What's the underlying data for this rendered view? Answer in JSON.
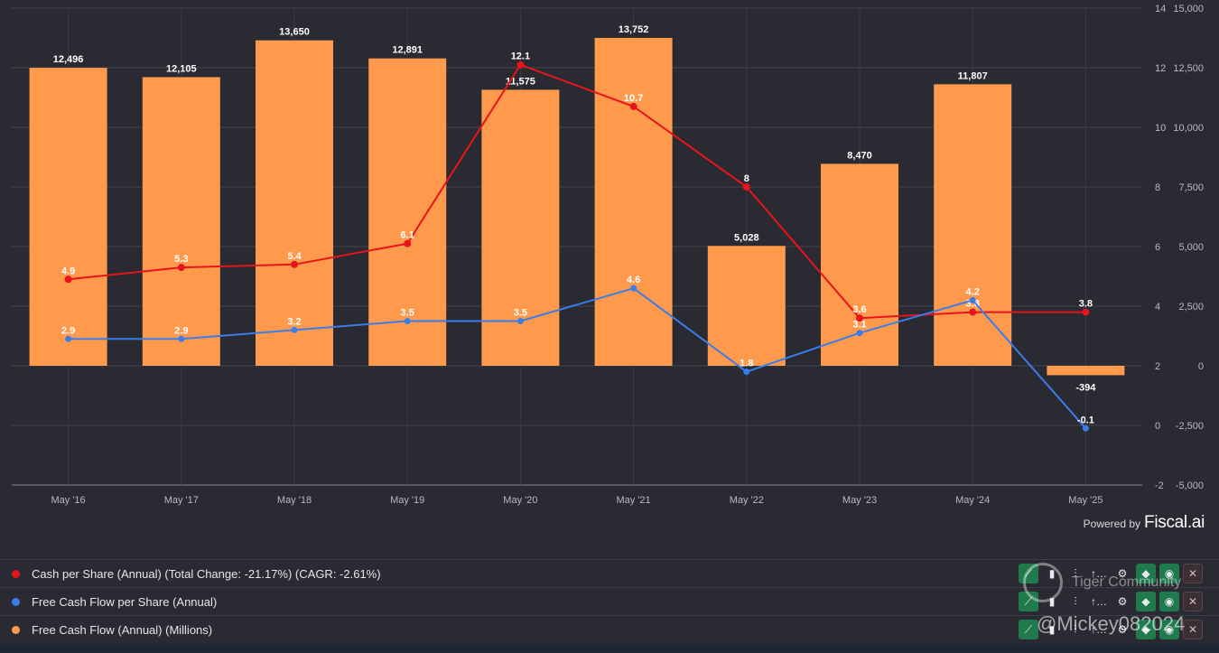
{
  "chart_data": {
    "type": "bar+line",
    "categories": [
      "May '16",
      "May '17",
      "May '18",
      "May '19",
      "May '20",
      "May '21",
      "May '22",
      "May '23",
      "May '24",
      "May '25"
    ],
    "bars": {
      "name": "Free Cash Flow (Annual) (Millions)",
      "values": [
        12496,
        12105,
        13650,
        12891,
        11575,
        13752,
        5028,
        8470,
        11807,
        -394
      ],
      "labels": [
        "12,496",
        "12,105",
        "13,650",
        "12,891",
        "11,575",
        "13,752",
        "5,028",
        "8,470",
        "11,807",
        "-394"
      ],
      "color": "#ff9a4d",
      "axis": "right",
      "ylim": [
        -5000,
        15000
      ],
      "ticks": [
        "15,000",
        "12,500",
        "10,000",
        "7,500",
        "5,000",
        "2,500",
        "0",
        "-2,500",
        "-5,000"
      ]
    },
    "series": [
      {
        "name": "Cash per Share (Annual)",
        "values": [
          4.9,
          5.3,
          5.4,
          6.1,
          12.1,
          10.7,
          8,
          3.6,
          3.8,
          3.8
        ],
        "labels": [
          "4.9",
          "5.3",
          "5.4",
          "6.1",
          "12.1",
          "10.7",
          "8",
          "3.6",
          "3.8",
          "3.8"
        ],
        "color": "#e8141b",
        "axis": "left"
      },
      {
        "name": "Free Cash Flow per Share (Annual)",
        "values": [
          2.9,
          2.9,
          3.2,
          3.5,
          3.5,
          4.6,
          1.8,
          3.1,
          4.2,
          -0.1
        ],
        "labels": [
          "2.9",
          "2.9",
          "3.2",
          "3.5",
          "3.5",
          "4.6",
          "1.8",
          "3.1",
          "4.2",
          "-0.1"
        ],
        "color": "#3b7de8",
        "axis": "left"
      }
    ],
    "left_axis": {
      "ylim": [
        -2,
        14
      ],
      "ticks": [
        "14",
        "12",
        "10",
        "8",
        "6",
        "4",
        "2",
        "0",
        "-2"
      ]
    },
    "grid": true
  },
  "branding": {
    "powered_by": "Powered by",
    "brand": "Fiscal.ai"
  },
  "legend": [
    {
      "label": "Cash per Share (Annual) (Total Change: -21.17%) (CAGR: -2.61%)",
      "color": "#e8141b"
    },
    {
      "label": "Free Cash Flow per Share (Annual)",
      "color": "#3b7de8"
    },
    {
      "label": "Free Cash Flow (Annual) (Millions)",
      "color": "#ff9a4d"
    }
  ],
  "controls": {
    "icons": [
      "line-chart-icon",
      "bar-chart-icon",
      "bar-type-icon",
      "sort-icon",
      "gear-icon",
      "tag-icon",
      "eye-icon",
      "close-icon"
    ],
    "glyphs": [
      "⟋",
      "▮",
      "⫶",
      "↑…",
      "⚙",
      "◆",
      "◉",
      "✕"
    ]
  },
  "watermark": {
    "community": "Tiger Community",
    "handle": "@Mickey082024"
  }
}
